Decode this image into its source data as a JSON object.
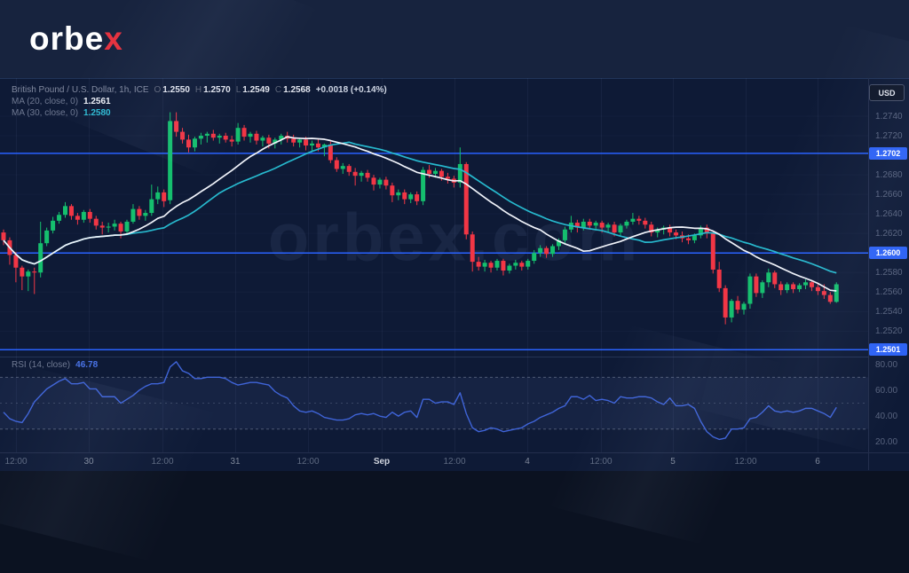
{
  "logo": {
    "main": "orbe",
    "accent": "x"
  },
  "toolbar": {
    "currency_label": "USD"
  },
  "legend": {
    "symbol_title": "British Pound / U.S. Dollar, 1h, ICE",
    "ohlc": {
      "o_label": "O",
      "o": "1.2550",
      "h_label": "H",
      "h": "1.2570",
      "l_label": "L",
      "l": "1.2549",
      "c_label": "C",
      "c": "1.2568",
      "change": "+0.0018 (+0.14%)"
    },
    "ma20": {
      "label": "MA (20, close, 0)",
      "value": "1.2561"
    },
    "ma30": {
      "label": "MA (30, close, 0)",
      "value": "1.2580"
    },
    "rsi": {
      "label": "RSI (14, close)",
      "value": "46.78"
    }
  },
  "watermark": "orbex.com",
  "colors": {
    "up": "#15bf6e",
    "down": "#f23645",
    "ma20": "#f0f3fa",
    "ma30": "#27b9ce",
    "rsi_line": "#3f64d8",
    "level_line": "#2962ff",
    "badge_bg": "#2d62f5",
    "bg_header": "#17233e",
    "bg_chart": "#0e1a36"
  },
  "chart_data": {
    "type": "candlestick",
    "title": "British Pound / U.S. Dollar, 1h, ICE",
    "symbol": "GBP/USD",
    "timeframe": "1h",
    "exchange": "ICE",
    "last_ohlc": {
      "open": 1.255,
      "high": 1.257,
      "low": 1.2549,
      "close": 1.2568,
      "change": 0.0018,
      "change_pct": 0.14
    },
    "ylim": [
      1.2494,
      1.2779
    ],
    "price_ticks": [
      1.274,
      1.272,
      1.268,
      1.266,
      1.264,
      1.262,
      1.258,
      1.256,
      1.254,
      1.252
    ],
    "price_levels": [
      1.2702,
      1.26,
      1.2501
    ],
    "time_labels": [
      {
        "text": "12:00",
        "x": 18,
        "kind": "time"
      },
      {
        "text": "30",
        "x": 100,
        "kind": "day"
      },
      {
        "text": "12:00",
        "x": 183,
        "kind": "time"
      },
      {
        "text": "31",
        "x": 265,
        "kind": "day"
      },
      {
        "text": "12:00",
        "x": 347,
        "kind": "time"
      },
      {
        "text": "Sep",
        "x": 430,
        "kind": "month"
      },
      {
        "text": "12:00",
        "x": 512,
        "kind": "time"
      },
      {
        "text": "4",
        "x": 594,
        "kind": "day"
      },
      {
        "text": "12:00",
        "x": 677,
        "kind": "time"
      },
      {
        "text": "5",
        "x": 758,
        "kind": "day"
      },
      {
        "text": "12:00",
        "x": 840,
        "kind": "time"
      },
      {
        "text": "6",
        "x": 921,
        "kind": "day"
      }
    ],
    "overlays": [
      {
        "name": "MA (20, close, 0)",
        "type": "sma",
        "period": 20,
        "last_value": 1.2561
      },
      {
        "name": "MA (30, close, 0)",
        "type": "sma",
        "period": 30,
        "last_value": 1.258
      }
    ],
    "candles": [
      [
        1.2621,
        1.2624,
        1.2608,
        1.2613
      ],
      [
        1.2613,
        1.2616,
        1.2588,
        1.2598
      ],
      [
        1.2598,
        1.2601,
        1.257,
        1.2585
      ],
      [
        1.2585,
        1.2587,
        1.2562,
        1.2576
      ],
      [
        1.2576,
        1.2583,
        1.2561,
        1.2581
      ],
      [
        1.2581,
        1.2585,
        1.2558,
        1.258
      ],
      [
        1.258,
        1.2632,
        1.2575,
        1.261
      ],
      [
        1.261,
        1.2626,
        1.2607,
        1.2623
      ],
      [
        1.2623,
        1.2637,
        1.262,
        1.2633
      ],
      [
        1.2633,
        1.2642,
        1.263,
        1.2639
      ],
      [
        1.2639,
        1.2652,
        1.2636,
        1.2648
      ],
      [
        1.2648,
        1.265,
        1.2634,
        1.2638
      ],
      [
        1.2638,
        1.2641,
        1.2629,
        1.2634
      ],
      [
        1.2634,
        1.2644,
        1.2631,
        1.2642
      ],
      [
        1.2642,
        1.2645,
        1.2631,
        1.2635
      ],
      [
        1.2635,
        1.2638,
        1.2624,
        1.2628
      ],
      [
        1.2628,
        1.2632,
        1.2619,
        1.2626
      ],
      [
        1.2626,
        1.2631,
        1.2621,
        1.2627
      ],
      [
        1.2627,
        1.2634,
        1.2623,
        1.263
      ],
      [
        1.263,
        1.2632,
        1.2615,
        1.2622
      ],
      [
        1.2622,
        1.2634,
        1.2619,
        1.2632
      ],
      [
        1.2632,
        1.265,
        1.263,
        1.2645
      ],
      [
        1.2645,
        1.2648,
        1.2634,
        1.2638
      ],
      [
        1.2638,
        1.2644,
        1.2633,
        1.2641
      ],
      [
        1.2641,
        1.267,
        1.2638,
        1.2655
      ],
      [
        1.2655,
        1.2668,
        1.265,
        1.2662
      ],
      [
        1.2662,
        1.2665,
        1.2647,
        1.2653
      ],
      [
        1.2654,
        1.2744,
        1.265,
        1.2735
      ],
      [
        1.2735,
        1.2744,
        1.2719,
        1.2724
      ],
      [
        1.2724,
        1.2728,
        1.2712,
        1.2716
      ],
      [
        1.2716,
        1.2721,
        1.2703,
        1.2708
      ],
      [
        1.2708,
        1.2719,
        1.2704,
        1.2717
      ],
      [
        1.2717,
        1.2723,
        1.2711,
        1.272
      ],
      [
        1.272,
        1.2724,
        1.2713,
        1.2722
      ],
      [
        1.2722,
        1.2726,
        1.2715,
        1.2718
      ],
      [
        1.2718,
        1.2722,
        1.2712,
        1.272
      ],
      [
        1.272,
        1.2723,
        1.2713,
        1.2716
      ],
      [
        1.2716,
        1.272,
        1.2709,
        1.2714
      ],
      [
        1.2714,
        1.2733,
        1.2711,
        1.2728
      ],
      [
        1.2728,
        1.2731,
        1.2715,
        1.2719
      ],
      [
        1.2719,
        1.2724,
        1.2713,
        1.2722
      ],
      [
        1.2722,
        1.2725,
        1.2711,
        1.2715
      ],
      [
        1.2715,
        1.272,
        1.2709,
        1.2718
      ],
      [
        1.2718,
        1.2721,
        1.2707,
        1.2712
      ],
      [
        1.2712,
        1.2718,
        1.2707,
        1.2716
      ],
      [
        1.2716,
        1.2722,
        1.2711,
        1.272
      ],
      [
        1.272,
        1.2724,
        1.2713,
        1.2717
      ],
      [
        1.2717,
        1.2721,
        1.2709,
        1.2713
      ],
      [
        1.2713,
        1.2718,
        1.2708,
        1.2716
      ],
      [
        1.2716,
        1.2719,
        1.2705,
        1.271
      ],
      [
        1.271,
        1.2715,
        1.2703,
        1.2712
      ],
      [
        1.2712,
        1.2716,
        1.2704,
        1.2708
      ],
      [
        1.2708,
        1.2712,
        1.2699,
        1.2711
      ],
      [
        1.2711,
        1.2714,
        1.2692,
        1.2695
      ],
      [
        1.2695,
        1.2698,
        1.2683,
        1.2686
      ],
      [
        1.2686,
        1.2692,
        1.2681,
        1.2689
      ],
      [
        1.2689,
        1.2691,
        1.2679,
        1.2683
      ],
      [
        1.2683,
        1.2687,
        1.2669,
        1.2679
      ],
      [
        1.2679,
        1.2684,
        1.2673,
        1.2682
      ],
      [
        1.2682,
        1.2685,
        1.2673,
        1.2677
      ],
      [
        1.2677,
        1.268,
        1.2664,
        1.267
      ],
      [
        1.267,
        1.2677,
        1.2666,
        1.2675
      ],
      [
        1.2675,
        1.2678,
        1.2665,
        1.2669
      ],
      [
        1.2669,
        1.2672,
        1.2652,
        1.2659
      ],
      [
        1.2659,
        1.2665,
        1.2654,
        1.2662
      ],
      [
        1.2662,
        1.2665,
        1.265,
        1.2655
      ],
      [
        1.2655,
        1.2662,
        1.2651,
        1.266
      ],
      [
        1.266,
        1.2663,
        1.2649,
        1.2653
      ],
      [
        1.2653,
        1.2688,
        1.2649,
        1.2685
      ],
      [
        1.2685,
        1.269,
        1.2677,
        1.2681
      ],
      [
        1.2681,
        1.2687,
        1.2677,
        1.2684
      ],
      [
        1.2684,
        1.2686,
        1.2674,
        1.2678
      ],
      [
        1.2678,
        1.2682,
        1.2671,
        1.2676
      ],
      [
        1.2676,
        1.2679,
        1.2667,
        1.2672
      ],
      [
        1.2672,
        1.2708,
        1.2667,
        1.2691
      ],
      [
        1.2691,
        1.2693,
        1.2614,
        1.2619
      ],
      [
        1.2619,
        1.2622,
        1.2581,
        1.2591
      ],
      [
        1.2591,
        1.2596,
        1.2582,
        1.2586
      ],
      [
        1.2586,
        1.2593,
        1.2581,
        1.259
      ],
      [
        1.259,
        1.2592,
        1.258,
        1.2585
      ],
      [
        1.2585,
        1.2594,
        1.2582,
        1.2592
      ],
      [
        1.2592,
        1.2594,
        1.2577,
        1.2582
      ],
      [
        1.2582,
        1.2589,
        1.2579,
        1.2587
      ],
      [
        1.2587,
        1.2593,
        1.2583,
        1.259
      ],
      [
        1.259,
        1.2592,
        1.2582,
        1.2586
      ],
      [
        1.2586,
        1.2594,
        1.2583,
        1.2592
      ],
      [
        1.2592,
        1.2603,
        1.2589,
        1.26
      ],
      [
        1.26,
        1.2608,
        1.2596,
        1.2605
      ],
      [
        1.2605,
        1.2607,
        1.2595,
        1.2599
      ],
      [
        1.2599,
        1.2609,
        1.2596,
        1.2607
      ],
      [
        1.2607,
        1.2615,
        1.2603,
        1.2613
      ],
      [
        1.2613,
        1.2627,
        1.261,
        1.2624
      ],
      [
        1.2624,
        1.2638,
        1.2621,
        1.2631
      ],
      [
        1.2631,
        1.2634,
        1.2621,
        1.2626
      ],
      [
        1.2626,
        1.2635,
        1.2623,
        1.2632
      ],
      [
        1.2632,
        1.2635,
        1.2624,
        1.2628
      ],
      [
        1.2628,
        1.2633,
        1.2623,
        1.2631
      ],
      [
        1.2631,
        1.2633,
        1.2621,
        1.2626
      ],
      [
        1.2626,
        1.2631,
        1.2621,
        1.2629
      ],
      [
        1.2629,
        1.2632,
        1.2617,
        1.2621
      ],
      [
        1.2621,
        1.263,
        1.2618,
        1.2628
      ],
      [
        1.2628,
        1.2634,
        1.2625,
        1.2632
      ],
      [
        1.2632,
        1.2641,
        1.2629,
        1.2635
      ],
      [
        1.2635,
        1.2638,
        1.2629,
        1.2633
      ],
      [
        1.2633,
        1.2636,
        1.2625,
        1.2629
      ],
      [
        1.2629,
        1.2632,
        1.2617,
        1.2621
      ],
      [
        1.2621,
        1.2626,
        1.2616,
        1.2624
      ],
      [
        1.2624,
        1.2628,
        1.2619,
        1.2626
      ],
      [
        1.2626,
        1.2629,
        1.2617,
        1.2621
      ],
      [
        1.2621,
        1.2624,
        1.2614,
        1.2618
      ],
      [
        1.2618,
        1.2622,
        1.2611,
        1.2615
      ],
      [
        1.2615,
        1.2619,
        1.2609,
        1.2613
      ],
      [
        1.2613,
        1.262,
        1.261,
        1.2618
      ],
      [
        1.2618,
        1.2628,
        1.2615,
        1.2626
      ],
      [
        1.2626,
        1.2629,
        1.2615,
        1.262
      ],
      [
        1.262,
        1.2623,
        1.2579,
        1.2583
      ],
      [
        1.2583,
        1.2591,
        1.256,
        1.2564
      ],
      [
        1.2564,
        1.2567,
        1.2527,
        1.2534
      ],
      [
        1.2534,
        1.2553,
        1.2529,
        1.2551
      ],
      [
        1.2551,
        1.2556,
        1.2538,
        1.2542
      ],
      [
        1.2542,
        1.255,
        1.2537,
        1.2548
      ],
      [
        1.2548,
        1.2579,
        1.2543,
        1.2576
      ],
      [
        1.2576,
        1.2579,
        1.2555,
        1.2559
      ],
      [
        1.2559,
        1.2572,
        1.2554,
        1.257
      ],
      [
        1.257,
        1.2584,
        1.2565,
        1.258
      ],
      [
        1.258,
        1.2582,
        1.2564,
        1.2568
      ],
      [
        1.2568,
        1.2571,
        1.2557,
        1.2562
      ],
      [
        1.2562,
        1.257,
        1.2559,
        1.2568
      ],
      [
        1.2568,
        1.257,
        1.2559,
        1.2563
      ],
      [
        1.2563,
        1.2569,
        1.256,
        1.2567
      ],
      [
        1.2567,
        1.2573,
        1.2563,
        1.257
      ],
      [
        1.257,
        1.2572,
        1.2561,
        1.2565
      ],
      [
        1.2565,
        1.2568,
        1.2557,
        1.2561
      ],
      [
        1.2561,
        1.2568,
        1.2553,
        1.2557
      ],
      [
        1.2557,
        1.256,
        1.2548,
        1.255
      ],
      [
        1.255,
        1.257,
        1.2549,
        1.2568
      ]
    ],
    "rsi": {
      "period": 14,
      "last_value": 46.78,
      "ylim": [
        12,
        86
      ],
      "bands": [
        70,
        50,
        30
      ],
      "axis_ticks": [
        80,
        60,
        40,
        20
      ],
      "values": [
        43,
        38,
        36,
        35,
        42,
        51,
        56,
        61,
        64,
        67,
        69,
        65,
        65,
        66,
        61,
        61,
        55,
        55,
        55,
        50,
        53,
        56,
        60,
        63,
        65,
        65,
        66,
        78,
        82,
        75,
        73,
        69,
        69,
        70,
        70,
        70,
        69,
        66,
        64,
        65,
        66,
        66,
        65,
        64,
        59,
        56,
        54,
        48,
        44,
        43,
        44,
        42,
        39,
        38,
        37,
        37,
        38,
        41,
        42,
        41,
        42,
        40,
        39,
        43,
        40,
        43,
        44,
        39,
        53,
        53,
        50,
        51,
        51,
        49,
        58,
        42,
        31,
        28,
        29,
        31,
        30,
        28,
        29,
        30,
        31,
        34,
        36,
        39,
        41,
        43,
        46,
        48,
        55,
        55,
        53,
        56,
        52,
        53,
        52,
        50,
        55,
        54,
        54,
        55,
        55,
        54,
        51,
        49,
        54,
        48,
        48,
        49,
        46,
        36,
        28,
        24,
        22,
        23,
        30,
        30,
        31,
        38,
        39,
        43,
        48,
        44,
        43,
        44,
        43,
        44,
        46,
        46,
        44,
        42,
        39,
        46.78
      ]
    }
  }
}
